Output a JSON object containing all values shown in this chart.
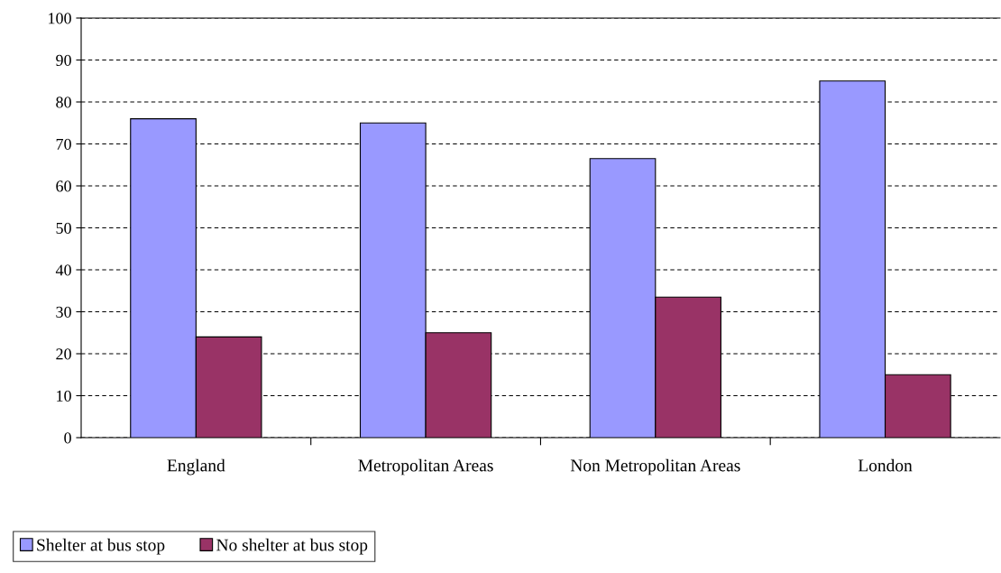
{
  "chart_data": {
    "type": "bar",
    "categories": [
      "England",
      "Metropolitan Areas",
      "Non Metropolitan Areas",
      "London"
    ],
    "series": [
      {
        "name": "Shelter at bus stop",
        "color": "#9999ff",
        "values": [
          76,
          75,
          66.5,
          85
        ]
      },
      {
        "name": "No shelter at bus stop",
        "color": "#993366",
        "values": [
          24,
          25,
          33.5,
          15
        ]
      }
    ],
    "ylim": [
      0,
      100
    ],
    "yticks": [
      0,
      10,
      20,
      30,
      40,
      50,
      60,
      70,
      80,
      90,
      100
    ],
    "grid": "y",
    "legend": "bottom left"
  }
}
